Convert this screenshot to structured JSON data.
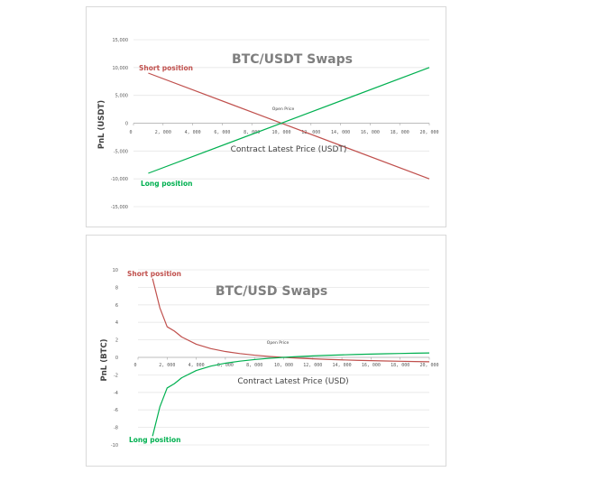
{
  "chart_data": [
    {
      "type": "line",
      "title": "BTC/USDT Swaps",
      "xlabel": "Contract Latest Price (USDT)",
      "ylabel": "PnL (USDT)",
      "xlim": [
        0,
        20000
      ],
      "ylim": [
        -15000,
        15000
      ],
      "x_ticks": [
        0,
        2000,
        4000,
        6000,
        8000,
        10000,
        12000,
        14000,
        16000,
        18000,
        20000
      ],
      "x_tick_labels": [
        "0",
        "2, 000",
        "4, 000",
        "6, 000",
        "8, 000",
        "10, 000",
        "12, 000",
        "14, 000",
        "16, 000",
        "18, 000",
        "20, 000"
      ],
      "y_ticks": [
        -15000,
        -10000,
        -5000,
        0,
        5000,
        10000,
        15000
      ],
      "y_tick_labels": [
        "-15,000",
        "-10,000",
        "-5,000",
        "0",
        "5,000",
        "10,000",
        "15,000"
      ],
      "grid": true,
      "annotation": "Open Price",
      "series": [
        {
          "name": "Short position",
          "color": "#c0504d",
          "x": [
            1000,
            20000
          ],
          "y": [
            9000,
            -10000
          ]
        },
        {
          "name": "Long position",
          "color": "#00b050",
          "x": [
            1000,
            20000
          ],
          "y": [
            -9000,
            10000
          ]
        }
      ]
    },
    {
      "type": "line",
      "title": "BTC/USD Swaps",
      "xlabel": "Contract Latest Price (USD)",
      "ylabel": "PnL (BTC)",
      "xlim": [
        0,
        20000
      ],
      "ylim": [
        -10,
        10
      ],
      "x_ticks": [
        0,
        2000,
        4000,
        6000,
        8000,
        10000,
        12000,
        14000,
        16000,
        18000,
        20000
      ],
      "x_tick_labels": [
        "0",
        "2, 000",
        "4, 000",
        "6, 000",
        "8, 000",
        "10, 000",
        "12, 000",
        "14, 000",
        "16, 000",
        "18, 000",
        "20, 000"
      ],
      "y_ticks": [
        -10,
        -8,
        -6,
        -4,
        -2,
        0,
        2,
        4,
        6,
        8,
        10
      ],
      "y_tick_labels": [
        "-10",
        "-8",
        "-6",
        "-4",
        "-2",
        "0",
        "2",
        "4",
        "6",
        "8",
        "10"
      ],
      "grid": true,
      "annotation": "Open Price",
      "series": [
        {
          "name": "Short position",
          "color": "#c0504d",
          "x": [
            1000,
            1500,
            2000,
            2500,
            3000,
            4000,
            5000,
            6000,
            7000,
            8000,
            9000,
            10000,
            11000,
            12000,
            13000,
            14000,
            15000,
            16000,
            17000,
            18000,
            19000,
            20000
          ],
          "y": [
            9,
            5.667,
            3.5,
            3,
            2.333,
            1.5,
            1,
            0.667,
            0.429,
            0.25,
            0.111,
            0,
            -0.091,
            -0.167,
            -0.231,
            -0.286,
            -0.333,
            -0.375,
            -0.412,
            -0.444,
            -0.474,
            -0.5
          ]
        },
        {
          "name": "Long position",
          "color": "#00b050",
          "x": [
            1000,
            1500,
            2000,
            2500,
            3000,
            4000,
            5000,
            6000,
            7000,
            8000,
            9000,
            10000,
            11000,
            12000,
            13000,
            14000,
            15000,
            16000,
            17000,
            18000,
            19000,
            20000
          ],
          "y": [
            -9,
            -5.667,
            -3.5,
            -3,
            -2.333,
            -1.5,
            -1,
            -0.667,
            -0.429,
            -0.25,
            -0.111,
            0,
            0.091,
            0.167,
            0.231,
            0.286,
            0.333,
            0.375,
            0.412,
            0.444,
            0.474,
            0.5
          ]
        }
      ]
    }
  ]
}
